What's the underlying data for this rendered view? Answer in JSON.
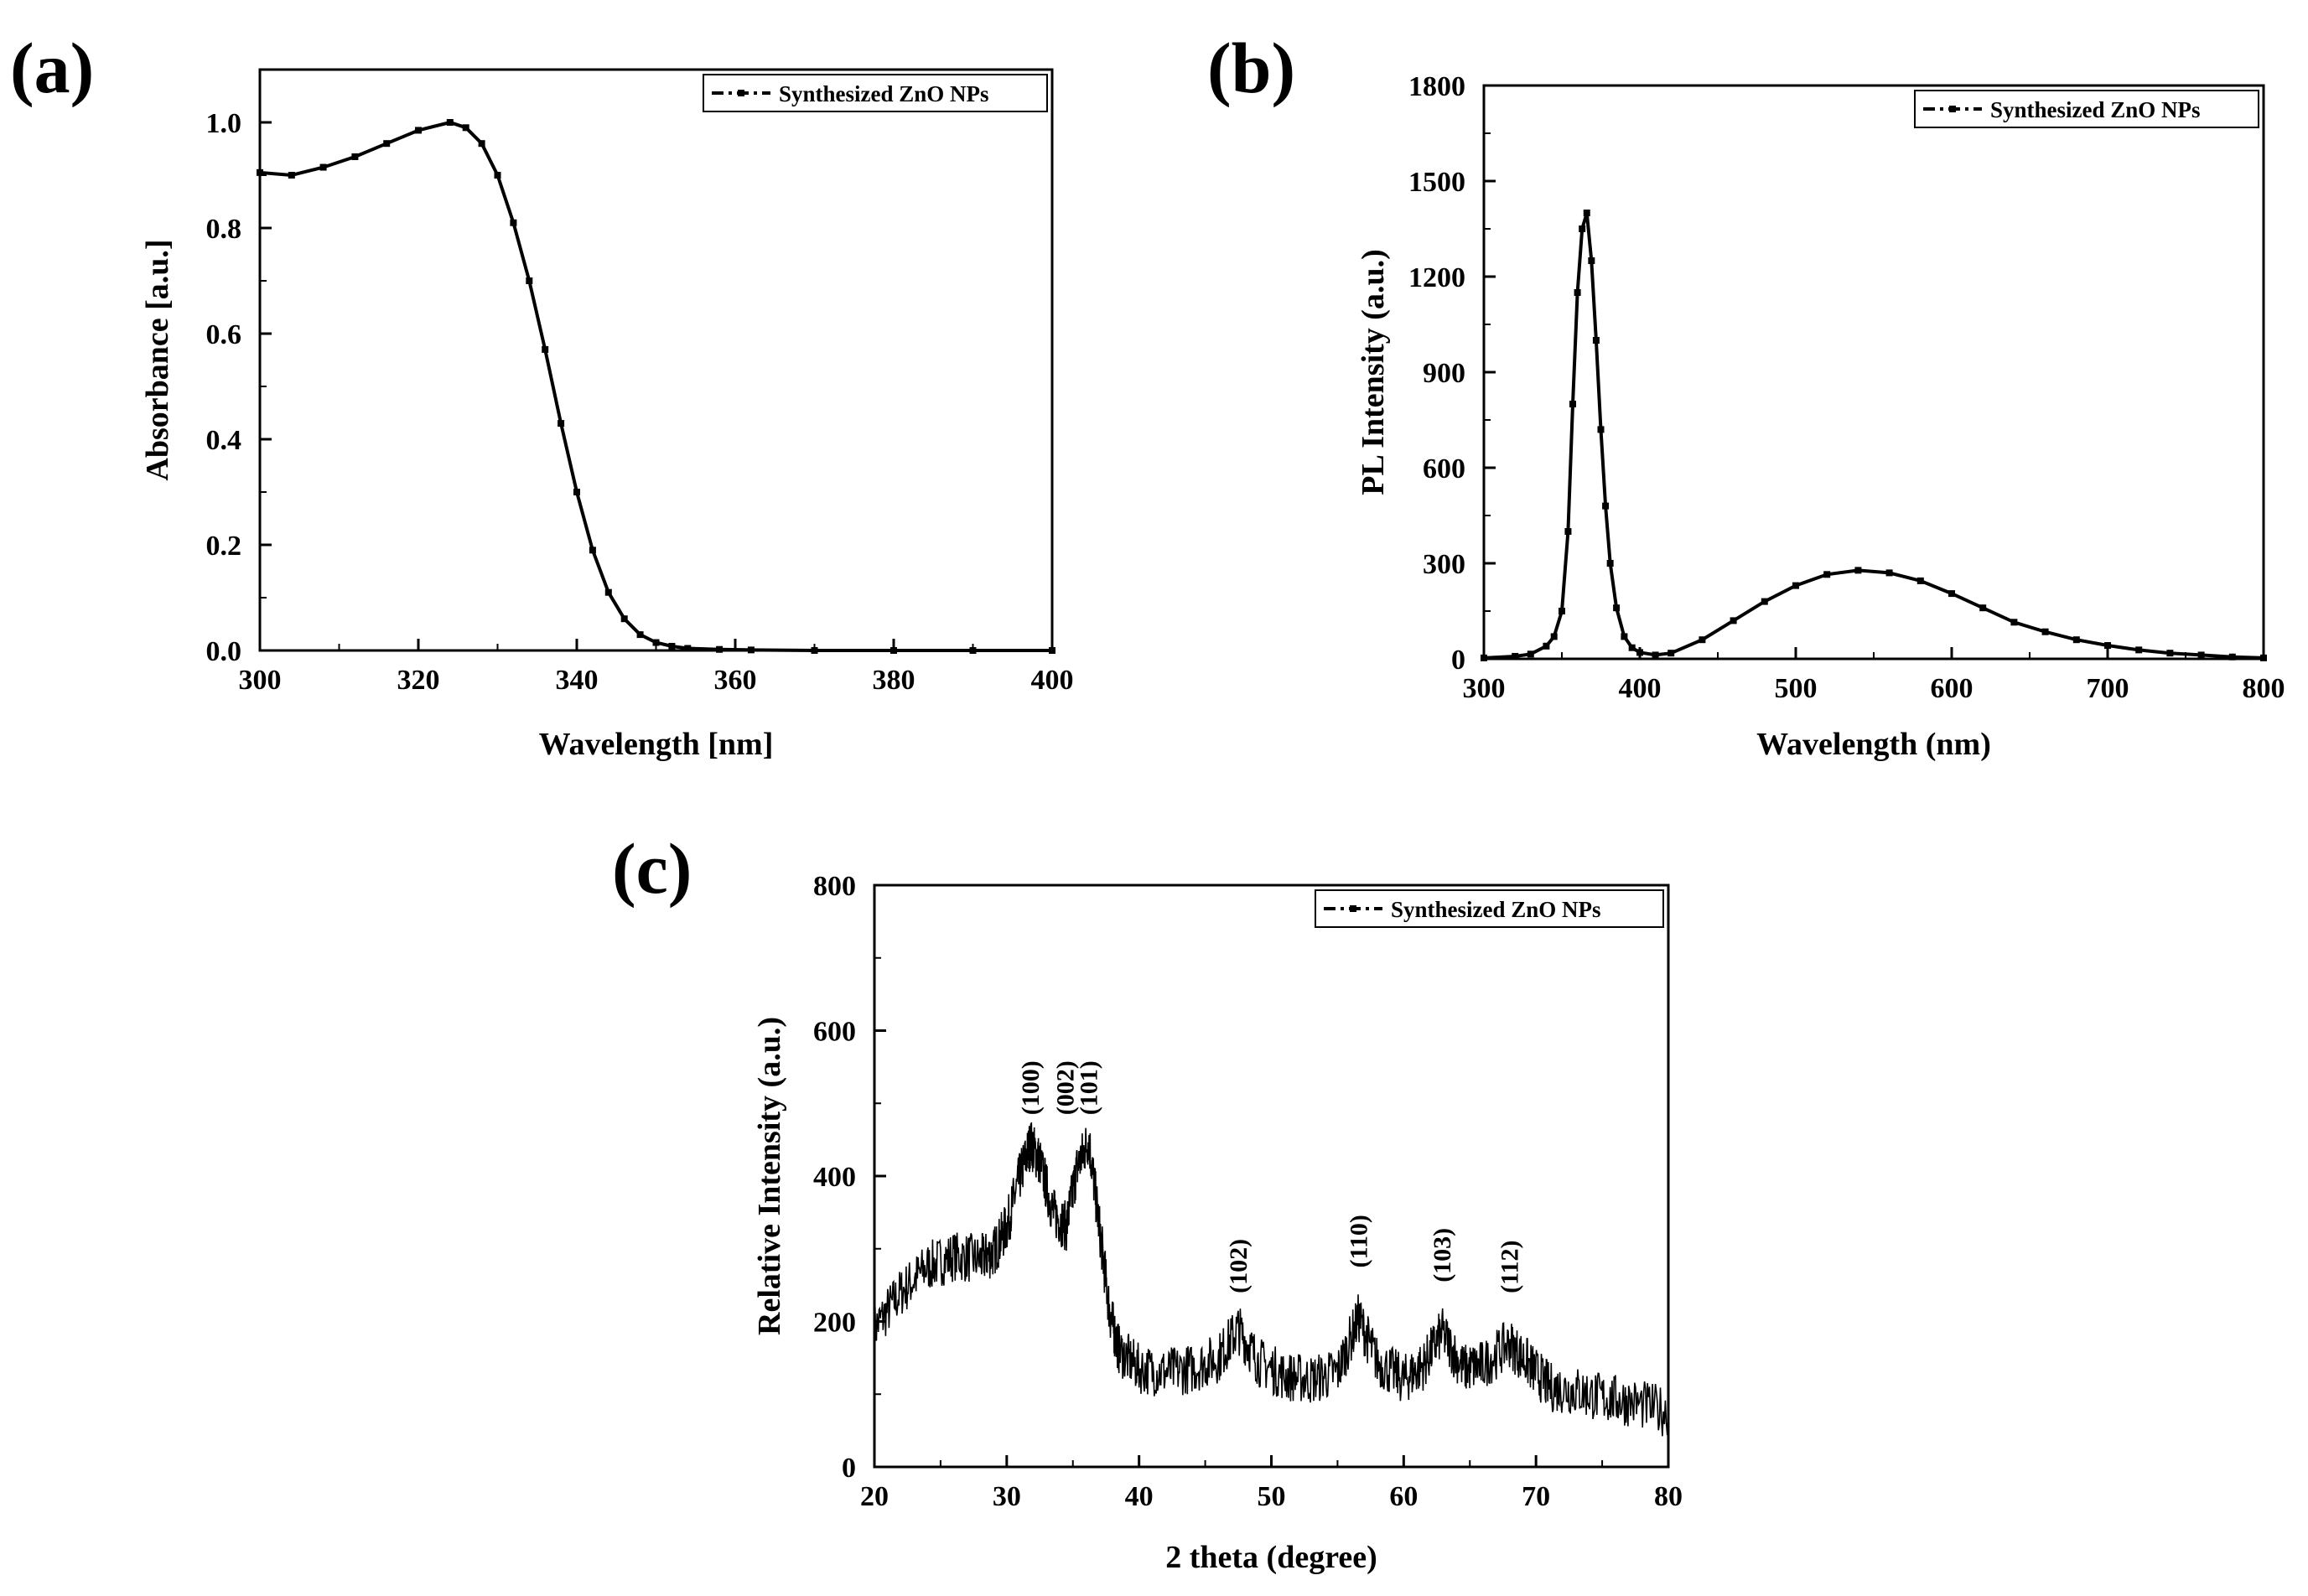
{
  "chart_data": [
    {
      "panel_label": "(a)",
      "type": "line",
      "xlabel": "Wavelength [nm]",
      "ylabel": "Absorbance [a.u.]",
      "xlim": [
        300,
        400
      ],
      "ylim": [
        0,
        1.1
      ],
      "x_ticks": [
        300,
        320,
        340,
        360,
        380,
        400
      ],
      "x_tick_labels": [
        "300",
        "320",
        "340",
        "360",
        "380",
        "400"
      ],
      "y_ticks": [
        0,
        0.2,
        0.4,
        0.6,
        0.8,
        1.0
      ],
      "y_tick_labels": [
        "0.0",
        "0.2",
        "0.4",
        "0.6",
        "0.8",
        "1.0"
      ],
      "legend": "Synthesized ZnO NPs",
      "legend_position": "top-right",
      "series": [
        {
          "name": "Synthesized ZnO NPs",
          "x": [
            300,
            304,
            308,
            312,
            316,
            320,
            324,
            326,
            328,
            330,
            332,
            334,
            336,
            338,
            340,
            342,
            344,
            346,
            348,
            350,
            352,
            354,
            358,
            362,
            370,
            380,
            390,
            400
          ],
          "y": [
            0.905,
            0.9,
            0.915,
            0.935,
            0.96,
            0.985,
            1.0,
            0.99,
            0.96,
            0.9,
            0.81,
            0.7,
            0.57,
            0.43,
            0.3,
            0.19,
            0.11,
            0.06,
            0.03,
            0.015,
            0.008,
            0.004,
            0.002,
            0.001,
            0.0,
            0.0,
            0.0,
            0.0
          ]
        }
      ]
    },
    {
      "panel_label": "(b)",
      "type": "line",
      "xlabel": "Wavelength (nm)",
      "ylabel": "PL Intensity (a.u.)",
      "xlim": [
        300,
        800
      ],
      "ylim": [
        0,
        1800
      ],
      "x_ticks": [
        300,
        400,
        500,
        600,
        700,
        800
      ],
      "x_tick_labels": [
        "300",
        "400",
        "500",
        "600",
        "700",
        "800"
      ],
      "y_ticks": [
        0,
        300,
        600,
        900,
        1200,
        1500,
        1800
      ],
      "y_tick_labels": [
        "0",
        "300",
        "600",
        "900",
        "1200",
        "1500",
        "1800"
      ],
      "legend": "Synthesized ZnO NPs",
      "legend_position": "top-right",
      "series": [
        {
          "name": "Synthesized ZnO NPs",
          "x": [
            300,
            320,
            330,
            340,
            345,
            350,
            354,
            357,
            360,
            363,
            366,
            369,
            372,
            375,
            378,
            381,
            385,
            390,
            395,
            400,
            410,
            420,
            440,
            460,
            480,
            500,
            520,
            540,
            560,
            580,
            600,
            620,
            640,
            660,
            680,
            700,
            720,
            740,
            760,
            780,
            800
          ],
          "y": [
            3,
            8,
            15,
            40,
            70,
            150,
            400,
            800,
            1150,
            1350,
            1400,
            1250,
            1000,
            720,
            480,
            300,
            160,
            70,
            35,
            20,
            12,
            18,
            60,
            120,
            180,
            230,
            265,
            278,
            270,
            245,
            205,
            160,
            115,
            85,
            60,
            42,
            28,
            18,
            12,
            6,
            3
          ]
        }
      ]
    },
    {
      "panel_label": "(c)",
      "type": "line",
      "xlabel": "2 theta (degree)",
      "ylabel": "Relative Intensity (a.u.)",
      "xlim": [
        20,
        80
      ],
      "ylim": [
        0,
        800
      ],
      "x_ticks": [
        20,
        30,
        40,
        50,
        60,
        70,
        80
      ],
      "x_tick_labels": [
        "20",
        "30",
        "40",
        "50",
        "60",
        "70",
        "80"
      ],
      "y_ticks": [
        0,
        200,
        400,
        600,
        800
      ],
      "y_tick_labels": [
        "0",
        "200",
        "400",
        "600",
        "800"
      ],
      "legend": "Synthesized ZnO NPs",
      "legend_position": "top-right",
      "series": [
        {
          "name": "Synthesized ZnO NPs",
          "x": [
            20,
            22,
            24,
            26,
            28,
            29,
            30,
            31,
            31.8,
            32.5,
            33.5,
            34.5,
            35.3,
            36.2,
            37,
            37.8,
            38.5,
            40,
            42,
            44,
            46,
            47.5,
            49,
            51,
            53,
            55,
            56.6,
            58,
            60,
            61.5,
            62.9,
            64.5,
            66,
            68,
            69.5,
            71,
            73,
            75,
            77,
            80
          ],
          "y": [
            190,
            240,
            275,
            290,
            285,
            295,
            330,
            400,
            445,
            420,
            350,
            330,
            410,
            450,
            330,
            210,
            160,
            135,
            130,
            135,
            150,
            190,
            145,
            125,
            120,
            130,
            205,
            145,
            120,
            140,
            185,
            135,
            140,
            170,
            140,
            110,
            105,
            95,
            90,
            75
          ]
        }
      ],
      "peak_labels": [
        {
          "label": "(100)",
          "x": 31.8
        },
        {
          "label": "(002)",
          "x": 34.4
        },
        {
          "label": "(101)",
          "x": 36.2
        },
        {
          "label": "(102)",
          "x": 47.5
        },
        {
          "label": "(110)",
          "x": 56.6
        },
        {
          "label": "(103)",
          "x": 62.9
        },
        {
          "label": "(112)",
          "x": 68.0
        }
      ]
    }
  ]
}
